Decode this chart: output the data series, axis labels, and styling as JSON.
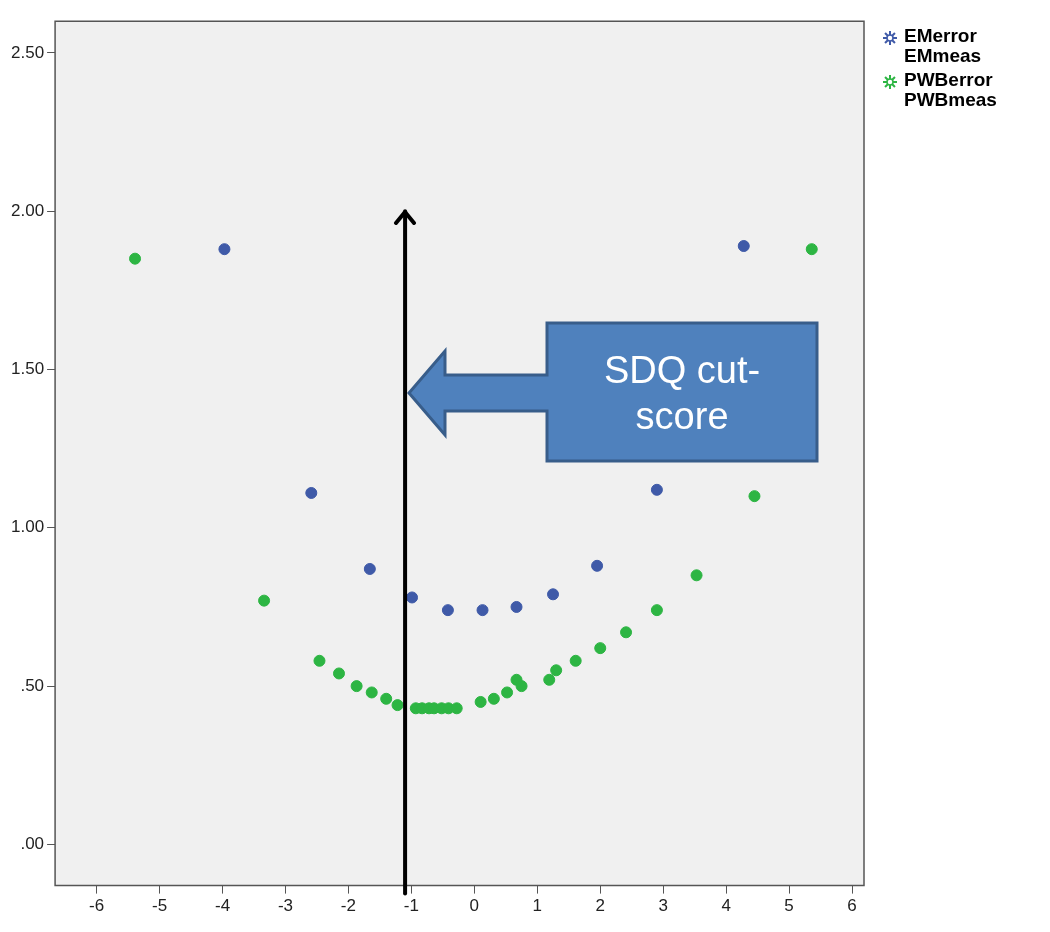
{
  "chart_data": {
    "type": "scatter",
    "marker": "circle",
    "grid": false,
    "legend": "top right",
    "xlim": [
      -6.66,
      6.19
    ],
    "xticks": [
      -6,
      -5,
      -4,
      -3,
      -2,
      -1,
      0,
      1,
      2,
      3,
      4,
      5,
      6
    ],
    "ylim": [
      -0.13,
      2.6
    ],
    "yticks": [
      {
        "value": 0,
        "label": ".00"
      },
      {
        "value": 0.5,
        "label": ".50"
      },
      {
        "value": 1,
        "label": "1.00"
      },
      {
        "value": 1.5,
        "label": "1.50"
      },
      {
        "value": 2,
        "label": "2.00"
      },
      {
        "value": 2.5,
        "label": "2.50"
      }
    ],
    "ref_lines": [
      {
        "axis": "x",
        "value": -1.1,
        "color": "#000000"
      }
    ],
    "annotations": [
      "SDQ cut-score"
    ],
    "series": [
      {
        "name": "EMerror EMmeas",
        "color": "#3f5aa8",
        "x": [
          -3.97,
          -2.59,
          -1.66,
          -0.99,
          -0.42,
          0.13,
          0.67,
          1.25,
          1.95,
          2.9,
          4.28
        ],
        "values": [
          1.88,
          1.11,
          0.87,
          0.78,
          0.74,
          0.74,
          0.75,
          0.79,
          0.88,
          1.12,
          1.89
        ]
      },
      {
        "name": "PWBerror PWBmeas",
        "color": "#2db543",
        "x": [
          -5.39,
          -3.34,
          -2.46,
          -2.15,
          -1.87,
          -1.63,
          -1.4,
          -1.22,
          -0.93,
          -0.83,
          -0.72,
          -0.64,
          -0.52,
          -0.41,
          -0.28,
          0.1,
          0.31,
          0.52,
          0.67,
          0.75,
          1.19,
          1.3,
          1.61,
          2.0,
          2.41,
          2.9,
          3.53,
          4.45,
          5.36
        ],
        "values": [
          1.85,
          0.77,
          0.58,
          0.54,
          0.5,
          0.48,
          0.46,
          0.44,
          0.43,
          0.43,
          0.43,
          0.43,
          0.43,
          0.43,
          0.43,
          0.45,
          0.46,
          0.48,
          0.52,
          0.5,
          0.52,
          0.55,
          0.58,
          0.62,
          0.67,
          0.74,
          0.85,
          1.1,
          1.88
        ]
      }
    ]
  }
}
